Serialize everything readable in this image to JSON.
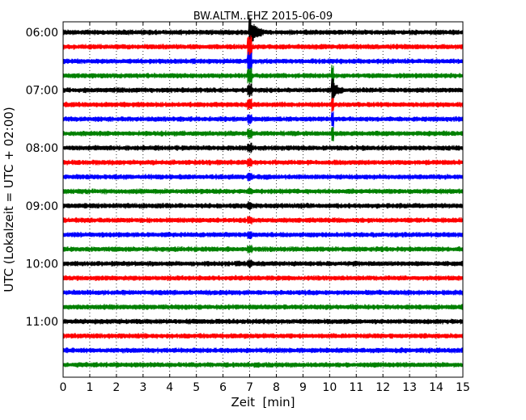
{
  "chart_data": {
    "type": "line",
    "title": "BW.ALTM..EHZ 2015-06-09",
    "xlabel": "Zeit  [min]",
    "ylabel": "UTC (Lokalzeit = UTC + 02:00)",
    "xlim": [
      0,
      15
    ],
    "x_ticks": [
      "0",
      "1",
      "2",
      "3",
      "4",
      "5",
      "6",
      "7",
      "8",
      "9",
      "10",
      "11",
      "12",
      "13",
      "14",
      "15"
    ],
    "y_ticks": [
      "06:00",
      "07:00",
      "08:00",
      "09:00",
      "10:00",
      "11:00"
    ],
    "trace_interval_min": 15,
    "grid": {
      "x": true,
      "style": "dotted"
    },
    "colors": [
      "#000000",
      "#ff0000",
      "#0000ff",
      "#008000"
    ],
    "series": [
      {
        "start": "06:00"
      },
      {
        "start": "06:15"
      },
      {
        "start": "06:30"
      },
      {
        "start": "06:45"
      },
      {
        "start": "07:00"
      },
      {
        "start": "07:15"
      },
      {
        "start": "07:30"
      },
      {
        "start": "07:45"
      },
      {
        "start": "08:00"
      },
      {
        "start": "08:15"
      },
      {
        "start": "08:30"
      },
      {
        "start": "08:45"
      },
      {
        "start": "09:00"
      },
      {
        "start": "09:15"
      },
      {
        "start": "09:30"
      },
      {
        "start": "09:45"
      },
      {
        "start": "10:00"
      },
      {
        "start": "10:15"
      },
      {
        "start": "10:30"
      },
      {
        "start": "10:45"
      },
      {
        "start": "11:00"
      },
      {
        "start": "11:15"
      },
      {
        "start": "11:30"
      },
      {
        "start": "11:45"
      }
    ],
    "events": [
      {
        "time": "06:00",
        "minute": 7.0
      },
      {
        "time": "07:00",
        "minute": 10.1
      }
    ]
  }
}
